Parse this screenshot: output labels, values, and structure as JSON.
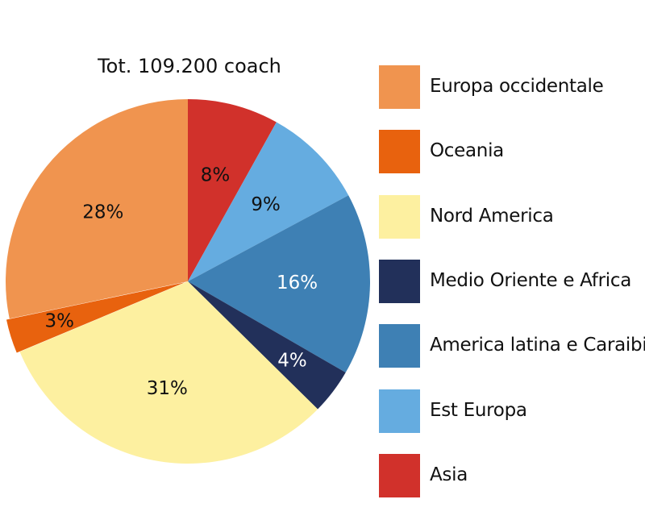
{
  "chart_data": {
    "type": "pie",
    "title": "Tot. 109.200 coach",
    "legend_position": "right",
    "slices": [
      {
        "name": "Asia",
        "value": 8,
        "label": "8%",
        "color": "#d1312b",
        "label_color": "#111111"
      },
      {
        "name": "Est Europa",
        "value": 9,
        "label": "9%",
        "color": "#65ace0",
        "label_color": "#111111"
      },
      {
        "name": "America latina e Caraibi",
        "value": 16,
        "label": "16%",
        "color": "#3e80b4",
        "label_color": "#ffffff"
      },
      {
        "name": "Medio Oriente e Africa",
        "value": 4,
        "label": "4%",
        "color": "#22305a",
        "label_color": "#ffffff"
      },
      {
        "name": "Nord America",
        "value": 31,
        "label": "31%",
        "color": "#fdf0a0",
        "label_color": "#111111"
      },
      {
        "name": "Oceania",
        "value": 3,
        "label": "3%",
        "color": "#e8620e",
        "label_color": "#111111"
      },
      {
        "name": "Europa occidentale",
        "value": 28,
        "label": "28%",
        "color": "#f0944f",
        "label_color": "#111111"
      }
    ],
    "legend_order": [
      "Europa occidentale",
      "Oceania",
      "Nord America",
      "Medio Oriente e Africa",
      "America latina e Caraibi",
      "Est Europa",
      "Asia"
    ]
  }
}
